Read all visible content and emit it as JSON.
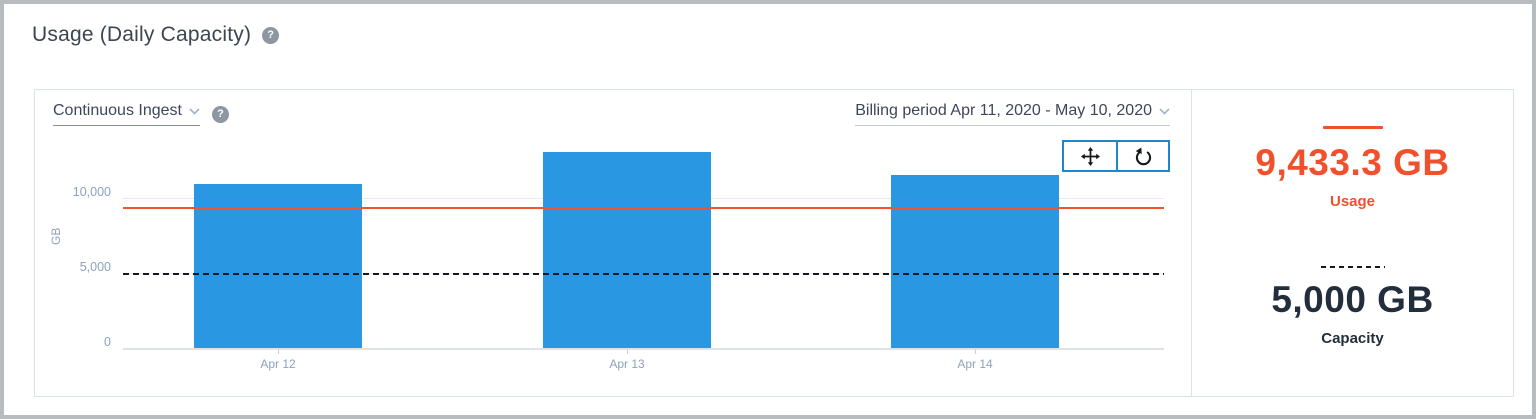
{
  "page": {
    "title": "Usage (Daily Capacity)",
    "help_icon": "?"
  },
  "chart_panel": {
    "metric_dropdown": {
      "label": "Continuous Ingest",
      "help_icon": "?"
    },
    "billing_dropdown": {
      "label": "Billing period Apr 11, 2020 - May 10, 2020"
    },
    "toolbar": {
      "buttons": [
        {
          "icon": "pan-icon"
        },
        {
          "icon": "reset-zoom-icon"
        }
      ]
    }
  },
  "chart_data": {
    "type": "bar",
    "categories": [
      "Apr 12",
      "Apr 13",
      "Apr 14"
    ],
    "values": [
      11020,
      13100,
      11630
    ],
    "title": "",
    "xlabel": "",
    "ylabel": "GB",
    "yticks": [
      0,
      5000,
      10000
    ],
    "ytick_labels": [
      "0",
      "5,000",
      "10,000"
    ],
    "ylim": [
      0,
      13600
    ],
    "grid": "horizontal",
    "legend": "none",
    "bar_color": "#2997e2",
    "reference_lines": [
      {
        "name": "Usage",
        "value": 9433.3,
        "style": "solid",
        "color": "#ee5530"
      },
      {
        "name": "Capacity",
        "value": 5000,
        "style": "dashed",
        "color": "#15181d"
      }
    ]
  },
  "summary_panel": {
    "usage": {
      "value": "9,433.3 GB",
      "label": "Usage",
      "color": "#f0512c",
      "line_style": "solid"
    },
    "capacity": {
      "value": "5,000 GB",
      "label": "Capacity",
      "color": "#232e3d",
      "line_style": "dashed"
    }
  },
  "colors": {
    "accent_orange": "#f0512c",
    "bar_blue": "#2997e2",
    "dark_navy": "#232e3d",
    "toolbar_border_blue": "#1f87c9",
    "axis_text": "#8da2ba"
  }
}
